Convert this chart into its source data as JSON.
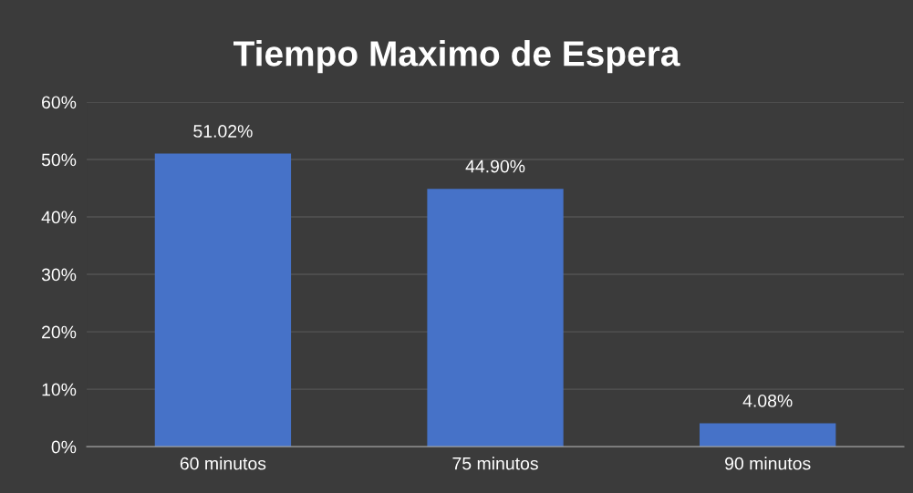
{
  "chart_data": {
    "type": "bar",
    "title": "Tiempo Maximo de Espera",
    "categories": [
      "60 minutos",
      "75 minutos",
      "90 minutos"
    ],
    "values": [
      51.02,
      44.9,
      4.08
    ],
    "color": "#4672c8",
    "value_labels": [
      "51.02%",
      "44.90%",
      "4.08%"
    ],
    "ylim": [
      0,
      60
    ],
    "yticks": [
      {
        "value": 0,
        "label": "0%"
      },
      {
        "value": 10,
        "label": "10%"
      },
      {
        "value": 20,
        "label": "20%"
      },
      {
        "value": 30,
        "label": "30%"
      },
      {
        "value": 40,
        "label": "40%"
      },
      {
        "value": 50,
        "label": "50%"
      },
      {
        "value": 60,
        "label": "60%"
      }
    ],
    "grid": "y",
    "legend": false
  }
}
